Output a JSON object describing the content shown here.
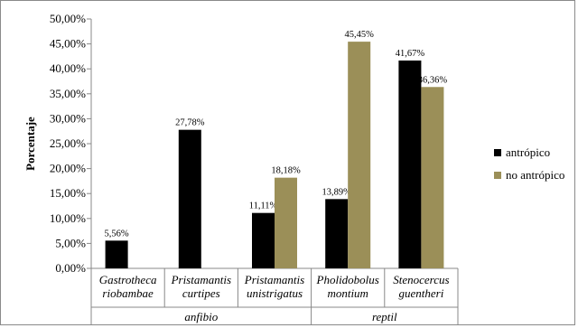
{
  "chart_data": {
    "type": "bar",
    "ylabel": "Porcentaje",
    "ylim": [
      0,
      50
    ],
    "yticks": [
      "0,00%",
      "5,00%",
      "10,00%",
      "15,00%",
      "20,00%",
      "25,00%",
      "30,00%",
      "35,00%",
      "40,00%",
      "45,00%",
      "50,00%"
    ],
    "categories": [
      [
        "Gastrotheca",
        "riobambae"
      ],
      [
        "Pristamantis",
        "curtipes"
      ],
      [
        "Pristamantis",
        "unistrigatus"
      ],
      [
        "Pholidobolus",
        "montium"
      ],
      [
        "Stenocercus",
        "guentheri"
      ]
    ],
    "groups": [
      {
        "label": "anfibio",
        "start": 0,
        "end": 2
      },
      {
        "label": "reptil",
        "start": 3,
        "end": 4
      }
    ],
    "series": [
      {
        "name": "antrópico",
        "color": "#000000",
        "values": [
          5.56,
          27.78,
          11.11,
          13.89,
          41.67
        ],
        "labels": [
          "5,56%",
          "27,78%",
          "11,11%",
          "13,89%",
          "41,67%"
        ]
      },
      {
        "name": "no antrópico",
        "color": "#9b8f58",
        "values": [
          null,
          null,
          18.18,
          45.45,
          36.36
        ],
        "labels": [
          "",
          "",
          "18,18%",
          "45,45%",
          "36,36%"
        ]
      }
    ],
    "legend": "right",
    "grid": false
  }
}
